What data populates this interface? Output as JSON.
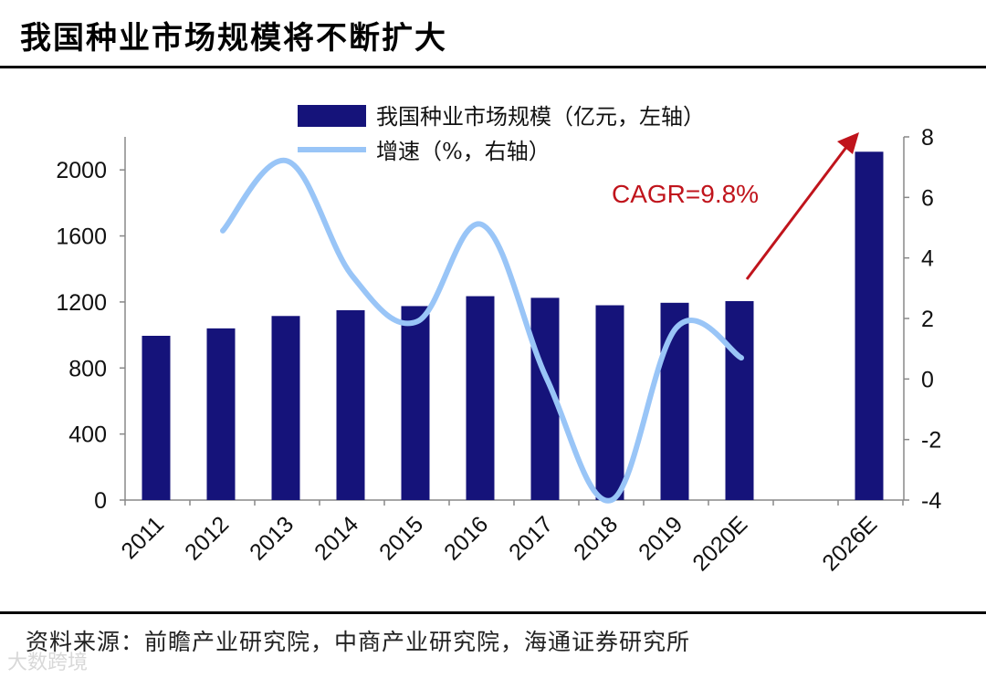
{
  "page": {
    "title": "我国种业市场规模将不断扩大",
    "source": "资料来源：前瞻产业研究院，中商产业研究院，海通证券研究所",
    "watermark": "大数跨境"
  },
  "chart_data": {
    "type": "bar",
    "categories": [
      "2011",
      "2012",
      "2013",
      "2014",
      "2015",
      "2016",
      "2017",
      "2018",
      "2019",
      "2020E",
      "2026E"
    ],
    "series": [
      {
        "name": "我国种业市场规模（亿元，左轴）",
        "type": "bar",
        "axis": "left",
        "color": "#15137a",
        "values": [
          995,
          1040,
          1115,
          1150,
          1175,
          1235,
          1225,
          1180,
          1195,
          1205,
          2110
        ]
      },
      {
        "name": "增速（%，右轴）",
        "type": "line",
        "axis": "right",
        "color": "#99c5f7",
        "values": [
          null,
          4.9,
          7.2,
          3.4,
          1.9,
          5.1,
          0.0,
          -4.0,
          1.7,
          0.7,
          null
        ]
      }
    ],
    "yleft": {
      "lim": [
        0,
        2200
      ],
      "ticks": [
        0,
        400,
        800,
        1200,
        1600,
        2000
      ]
    },
    "yright": {
      "lim": [
        -4,
        8
      ],
      "ticks": [
        -4,
        -2,
        0,
        2,
        4,
        6,
        8
      ]
    },
    "annotation": {
      "text": "CAGR=9.8%",
      "color": "#c0141c"
    },
    "legend_position": "top"
  }
}
